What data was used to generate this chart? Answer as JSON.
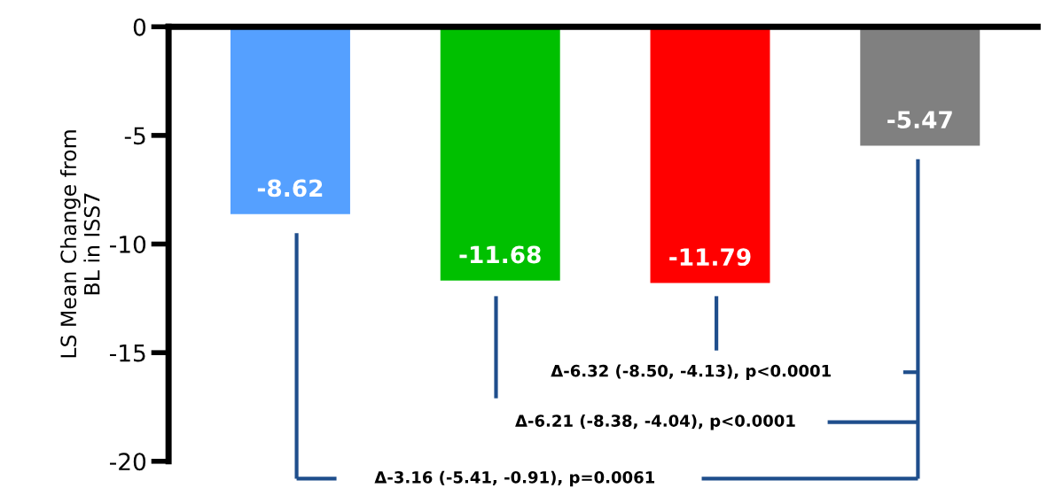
{
  "chart_data": {
    "type": "bar",
    "categories": [
      null,
      null,
      null,
      null
    ],
    "values": [
      -8.62,
      -11.68,
      -11.79,
      -5.47
    ],
    "colors": [
      "#55a0ff",
      "#00c000",
      "#ff0000",
      "#808080"
    ],
    "ylim": [
      -20,
      0
    ],
    "yticks": [
      0,
      -5,
      -10,
      -15,
      -20
    ],
    "ylabel": "LS Mean Change from\nBL in ISS7",
    "data_labels": true,
    "grid": false,
    "tick_labels": "y",
    "annotations": [
      "Δ-6.32 (-8.50, -4.13), p<0.0001",
      "Δ-6.21 (-8.38, -4.04), p<0.0001",
      "Δ-3.16 (-5.41, -0.91), p=0.0061"
    ]
  }
}
